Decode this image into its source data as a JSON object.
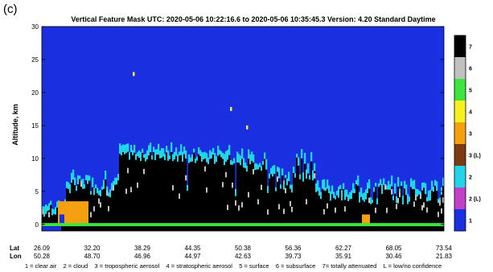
{
  "panel_label": "(c)",
  "chart_data": {
    "type": "heatmap",
    "title": "Vertical Feature Mask   UTC:  2020-05-06   10:22:16.6  to  2020-05-06   10:35:45.3   Version: 4.20  Standard Daytime",
    "ylabel": "Altitude, km",
    "ylim": [
      -1,
      30
    ],
    "yticks": [
      "0",
      "5",
      "10",
      "15",
      "20",
      "25",
      "30"
    ],
    "row_labels": [
      "Lat",
      "Lon"
    ],
    "lat_ticks": [
      "26.09",
      "32.20",
      "38.29",
      "44.35",
      "50.38",
      "56.36",
      "62.27",
      "68.05",
      "73.54"
    ],
    "lon_ticks": [
      "50.28",
      "48.70",
      "46.96",
      "44.97",
      "42.63",
      "39.73",
      "35.91",
      "30.46",
      "21.83"
    ],
    "colorbar": {
      "labels": [
        "1",
        "2 (L)",
        "2",
        "3 (L)",
        "3",
        "4",
        "5",
        "6",
        "7"
      ],
      "colors": [
        "#1a2fe0",
        "#c040c8",
        "#22d4e8",
        "#7a3b10",
        "#f5a010",
        "#f7f020",
        "#3ee33e",
        "#c0c0c0",
        "#000000"
      ]
    },
    "legend_text": "1 = clear air    2 = cloud    3 = tropospheric aerosol    4 = stratospheric aerosol    5 = surface    6 = subsurface    7= totally attenuated    L = low/no confidence",
    "classes": {
      "clear_air": "#1a2fe0",
      "cloud": "#22d4e8",
      "trop_aerosol": "#f5a010",
      "strat_aerosol": "#f7f020",
      "surface": "#3ee33e",
      "subsurface": "#c0c0c0",
      "attenuated": "#000000",
      "low_conf_cloud": "#c040c8",
      "low_conf_aerosol": "#7a3b10"
    }
  }
}
